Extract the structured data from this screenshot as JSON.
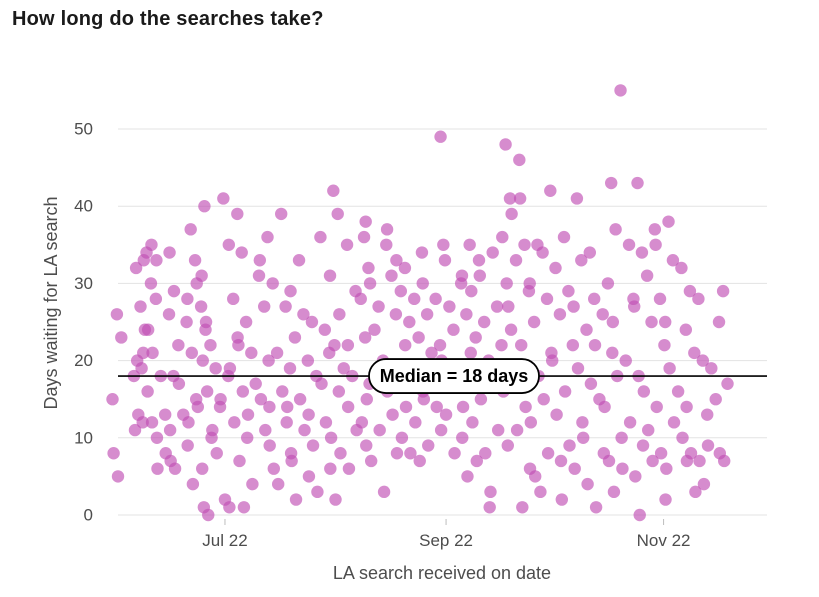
{
  "chart_data": {
    "type": "scatter",
    "title": "How long do the searches take?",
    "xlabel": "LA search received on date",
    "ylabel": "Days waiting for LA search",
    "x_type": "date",
    "xlim": [
      "2022-06-01",
      "2022-11-30"
    ],
    "ylim": [
      0,
      55
    ],
    "x_ticks": [
      {
        "date": "2022-07-01",
        "label": "Jul 22"
      },
      {
        "date": "2022-09-01",
        "label": "Sep 22"
      },
      {
        "date": "2022-11-01",
        "label": "Nov 22"
      }
    ],
    "y_ticks": [
      0,
      10,
      20,
      30,
      40,
      50
    ],
    "grid": "horizontal",
    "point_color": "#c04fb3",
    "median": {
      "value": 18,
      "label": "Median = 18 days"
    },
    "points": [
      [
        "2022-06-01",
        15
      ],
      [
        "2022-06-01",
        26
      ],
      [
        "2022-06-01",
        23
      ],
      [
        "2022-06-01",
        8
      ],
      [
        "2022-06-01",
        5
      ],
      [
        "2022-06-07",
        33
      ],
      [
        "2022-06-07",
        32
      ],
      [
        "2022-06-07",
        27
      ],
      [
        "2022-06-07",
        24
      ],
      [
        "2022-06-07",
        20
      ],
      [
        "2022-06-07",
        19
      ],
      [
        "2022-06-07",
        18
      ],
      [
        "2022-06-07",
        13
      ],
      [
        "2022-06-07",
        12
      ],
      [
        "2022-06-07",
        11
      ],
      [
        "2022-06-09",
        34
      ],
      [
        "2022-06-09",
        30
      ],
      [
        "2022-06-09",
        21
      ],
      [
        "2022-06-09",
        16
      ],
      [
        "2022-06-09",
        12
      ],
      [
        "2022-06-11",
        35
      ],
      [
        "2022-06-11",
        28
      ],
      [
        "2022-06-11",
        24
      ],
      [
        "2022-06-11",
        21
      ],
      [
        "2022-06-11",
        10
      ],
      [
        "2022-06-13",
        33
      ],
      [
        "2022-06-13",
        18
      ],
      [
        "2022-06-13",
        13
      ],
      [
        "2022-06-13",
        6
      ],
      [
        "2022-06-15",
        26
      ],
      [
        "2022-06-15",
        18
      ],
      [
        "2022-06-15",
        8
      ],
      [
        "2022-06-15",
        11
      ],
      [
        "2022-06-17",
        34
      ],
      [
        "2022-06-17",
        29
      ],
      [
        "2022-06-17",
        22
      ],
      [
        "2022-06-17",
        7
      ],
      [
        "2022-06-17",
        6
      ],
      [
        "2022-06-19",
        25
      ],
      [
        "2022-06-19",
        17
      ],
      [
        "2022-06-19",
        13
      ],
      [
        "2022-06-19",
        9
      ],
      [
        "2022-06-22",
        37
      ],
      [
        "2022-06-22",
        33
      ],
      [
        "2022-06-22",
        28
      ],
      [
        "2022-06-22",
        21
      ],
      [
        "2022-06-22",
        15
      ],
      [
        "2022-06-22",
        12
      ],
      [
        "2022-06-22",
        4
      ],
      [
        "2022-06-24",
        40
      ],
      [
        "2022-06-24",
        30
      ],
      [
        "2022-06-24",
        27
      ],
      [
        "2022-06-24",
        24
      ],
      [
        "2022-06-24",
        14
      ],
      [
        "2022-06-24",
        6
      ],
      [
        "2022-06-26",
        31
      ],
      [
        "2022-06-26",
        25
      ],
      [
        "2022-06-26",
        22
      ],
      [
        "2022-06-26",
        20
      ],
      [
        "2022-06-26",
        16
      ],
      [
        "2022-06-26",
        10
      ],
      [
        "2022-06-26",
        1
      ],
      [
        "2022-06-26",
        0
      ],
      [
        "2022-06-29",
        41
      ],
      [
        "2022-06-29",
        19
      ],
      [
        "2022-06-29",
        14
      ],
      [
        "2022-06-29",
        11
      ],
      [
        "2022-06-29",
        8
      ],
      [
        "2022-07-01",
        18
      ],
      [
        "2022-07-01",
        15
      ],
      [
        "2022-07-01",
        2
      ],
      [
        "2022-07-01",
        1
      ],
      [
        "2022-07-03",
        35
      ],
      [
        "2022-07-03",
        28
      ],
      [
        "2022-07-03",
        23
      ],
      [
        "2022-07-03",
        19
      ],
      [
        "2022-07-03",
        12
      ],
      [
        "2022-07-06",
        39
      ],
      [
        "2022-07-06",
        34
      ],
      [
        "2022-07-06",
        25
      ],
      [
        "2022-07-06",
        22
      ],
      [
        "2022-07-06",
        16
      ],
      [
        "2022-07-06",
        10
      ],
      [
        "2022-07-06",
        7
      ],
      [
        "2022-07-06",
        1
      ],
      [
        "2022-07-09",
        31
      ],
      [
        "2022-07-09",
        21
      ],
      [
        "2022-07-09",
        17
      ],
      [
        "2022-07-09",
        13
      ],
      [
        "2022-07-09",
        4
      ],
      [
        "2022-07-12",
        36
      ],
      [
        "2022-07-12",
        33
      ],
      [
        "2022-07-12",
        27
      ],
      [
        "2022-07-12",
        20
      ],
      [
        "2022-07-12",
        15
      ],
      [
        "2022-07-12",
        11
      ],
      [
        "2022-07-12",
        9
      ],
      [
        "2022-07-15",
        30
      ],
      [
        "2022-07-15",
        21
      ],
      [
        "2022-07-15",
        14
      ],
      [
        "2022-07-15",
        6
      ],
      [
        "2022-07-15",
        4
      ],
      [
        "2022-07-18",
        39
      ],
      [
        "2022-07-18",
        27
      ],
      [
        "2022-07-18",
        19
      ],
      [
        "2022-07-18",
        16
      ],
      [
        "2022-07-18",
        12
      ],
      [
        "2022-07-18",
        8
      ],
      [
        "2022-07-20",
        29
      ],
      [
        "2022-07-20",
        23
      ],
      [
        "2022-07-20",
        14
      ],
      [
        "2022-07-20",
        7
      ],
      [
        "2022-07-20",
        2
      ],
      [
        "2022-07-23",
        33
      ],
      [
        "2022-07-23",
        26
      ],
      [
        "2022-07-23",
        20
      ],
      [
        "2022-07-23",
        15
      ],
      [
        "2022-07-23",
        11
      ],
      [
        "2022-07-23",
        5
      ],
      [
        "2022-07-26",
        25
      ],
      [
        "2022-07-26",
        18
      ],
      [
        "2022-07-26",
        13
      ],
      [
        "2022-07-26",
        9
      ],
      [
        "2022-07-26",
        3
      ],
      [
        "2022-07-29",
        36
      ],
      [
        "2022-07-29",
        24
      ],
      [
        "2022-07-29",
        21
      ],
      [
        "2022-07-29",
        17
      ],
      [
        "2022-07-29",
        12
      ],
      [
        "2022-07-29",
        6
      ],
      [
        "2022-08-01",
        42
      ],
      [
        "2022-08-01",
        39
      ],
      [
        "2022-08-01",
        31
      ],
      [
        "2022-08-01",
        22
      ],
      [
        "2022-08-01",
        16
      ],
      [
        "2022-08-01",
        10
      ],
      [
        "2022-08-01",
        2
      ],
      [
        "2022-08-03",
        35
      ],
      [
        "2022-08-03",
        26
      ],
      [
        "2022-08-03",
        19
      ],
      [
        "2022-08-03",
        14
      ],
      [
        "2022-08-03",
        8
      ],
      [
        "2022-08-06",
        29
      ],
      [
        "2022-08-06",
        22
      ],
      [
        "2022-08-06",
        18
      ],
      [
        "2022-08-06",
        11
      ],
      [
        "2022-08-06",
        6
      ],
      [
        "2022-08-09",
        36
      ],
      [
        "2022-08-09",
        32
      ],
      [
        "2022-08-09",
        28
      ],
      [
        "2022-08-09",
        23
      ],
      [
        "2022-08-09",
        17
      ],
      [
        "2022-08-09",
        12
      ],
      [
        "2022-08-09",
        9
      ],
      [
        "2022-08-11",
        38
      ],
      [
        "2022-08-11",
        30
      ],
      [
        "2022-08-11",
        24
      ],
      [
        "2022-08-11",
        15
      ],
      [
        "2022-08-11",
        7
      ],
      [
        "2022-08-14",
        35
      ],
      [
        "2022-08-14",
        27
      ],
      [
        "2022-08-14",
        20
      ],
      [
        "2022-08-14",
        16
      ],
      [
        "2022-08-14",
        11
      ],
      [
        "2022-08-14",
        3
      ],
      [
        "2022-08-17",
        37
      ],
      [
        "2022-08-17",
        31
      ],
      [
        "2022-08-17",
        26
      ],
      [
        "2022-08-17",
        19
      ],
      [
        "2022-08-17",
        13
      ],
      [
        "2022-08-17",
        8
      ],
      [
        "2022-08-19",
        33
      ],
      [
        "2022-08-19",
        29
      ],
      [
        "2022-08-19",
        22
      ],
      [
        "2022-08-19",
        17
      ],
      [
        "2022-08-19",
        10
      ],
      [
        "2022-08-22",
        32
      ],
      [
        "2022-08-22",
        25
      ],
      [
        "2022-08-22",
        18
      ],
      [
        "2022-08-22",
        14
      ],
      [
        "2022-08-22",
        8
      ],
      [
        "2022-08-24",
        34
      ],
      [
        "2022-08-24",
        28
      ],
      [
        "2022-08-24",
        23
      ],
      [
        "2022-08-24",
        16
      ],
      [
        "2022-08-24",
        12
      ],
      [
        "2022-08-24",
        7
      ],
      [
        "2022-08-27",
        30
      ],
      [
        "2022-08-27",
        26
      ],
      [
        "2022-08-27",
        21
      ],
      [
        "2022-08-27",
        15
      ],
      [
        "2022-08-27",
        9
      ],
      [
        "2022-08-30",
        35
      ],
      [
        "2022-08-30",
        28
      ],
      [
        "2022-08-30",
        22
      ],
      [
        "2022-08-30",
        19
      ],
      [
        "2022-08-30",
        14
      ],
      [
        "2022-08-30",
        11
      ],
      [
        "2022-09-01",
        49
      ],
      [
        "2022-09-01",
        33
      ],
      [
        "2022-09-01",
        27
      ],
      [
        "2022-09-01",
        20
      ],
      [
        "2022-09-01",
        13
      ],
      [
        "2022-09-04",
        30
      ],
      [
        "2022-09-04",
        24
      ],
      [
        "2022-09-04",
        17
      ],
      [
        "2022-09-04",
        10
      ],
      [
        "2022-09-04",
        8
      ],
      [
        "2022-09-07",
        35
      ],
      [
        "2022-09-07",
        31
      ],
      [
        "2022-09-07",
        26
      ],
      [
        "2022-09-07",
        21
      ],
      [
        "2022-09-07",
        14
      ],
      [
        "2022-09-07",
        5
      ],
      [
        "2022-09-09",
        33
      ],
      [
        "2022-09-09",
        29
      ],
      [
        "2022-09-09",
        23
      ],
      [
        "2022-09-09",
        18
      ],
      [
        "2022-09-09",
        12
      ],
      [
        "2022-09-09",
        7
      ],
      [
        "2022-09-12",
        31
      ],
      [
        "2022-09-12",
        25
      ],
      [
        "2022-09-12",
        20
      ],
      [
        "2022-09-12",
        15
      ],
      [
        "2022-09-12",
        8
      ],
      [
        "2022-09-12",
        1
      ],
      [
        "2022-09-15",
        34
      ],
      [
        "2022-09-15",
        27
      ],
      [
        "2022-09-15",
        22
      ],
      [
        "2022-09-15",
        17
      ],
      [
        "2022-09-15",
        11
      ],
      [
        "2022-09-15",
        3
      ],
      [
        "2022-09-18",
        48
      ],
      [
        "2022-09-18",
        41
      ],
      [
        "2022-09-18",
        36
      ],
      [
        "2022-09-18",
        30
      ],
      [
        "2022-09-18",
        24
      ],
      [
        "2022-09-18",
        16
      ],
      [
        "2022-09-18",
        9
      ],
      [
        "2022-09-20",
        46
      ],
      [
        "2022-09-20",
        39
      ],
      [
        "2022-09-20",
        33
      ],
      [
        "2022-09-20",
        27
      ],
      [
        "2022-09-20",
        19
      ],
      [
        "2022-09-20",
        11
      ],
      [
        "2022-09-23",
        41
      ],
      [
        "2022-09-23",
        35
      ],
      [
        "2022-09-23",
        29
      ],
      [
        "2022-09-23",
        22
      ],
      [
        "2022-09-23",
        14
      ],
      [
        "2022-09-23",
        6
      ],
      [
        "2022-09-23",
        1
      ],
      [
        "2022-09-26",
        35
      ],
      [
        "2022-09-26",
        30
      ],
      [
        "2022-09-26",
        25
      ],
      [
        "2022-09-26",
        18
      ],
      [
        "2022-09-26",
        12
      ],
      [
        "2022-09-26",
        5
      ],
      [
        "2022-09-29",
        42
      ],
      [
        "2022-09-29",
        34
      ],
      [
        "2022-09-29",
        28
      ],
      [
        "2022-09-29",
        21
      ],
      [
        "2022-09-29",
        15
      ],
      [
        "2022-09-29",
        8
      ],
      [
        "2022-09-29",
        3
      ],
      [
        "2022-10-02",
        32
      ],
      [
        "2022-10-02",
        26
      ],
      [
        "2022-10-02",
        20
      ],
      [
        "2022-10-02",
        13
      ],
      [
        "2022-10-02",
        7
      ],
      [
        "2022-10-05",
        36
      ],
      [
        "2022-10-05",
        29
      ],
      [
        "2022-10-05",
        22
      ],
      [
        "2022-10-05",
        16
      ],
      [
        "2022-10-05",
        9
      ],
      [
        "2022-10-05",
        2
      ],
      [
        "2022-10-08",
        41
      ],
      [
        "2022-10-08",
        33
      ],
      [
        "2022-10-08",
        27
      ],
      [
        "2022-10-08",
        19
      ],
      [
        "2022-10-08",
        12
      ],
      [
        "2022-10-08",
        6
      ],
      [
        "2022-10-11",
        34
      ],
      [
        "2022-10-11",
        28
      ],
      [
        "2022-10-11",
        24
      ],
      [
        "2022-10-11",
        17
      ],
      [
        "2022-10-11",
        10
      ],
      [
        "2022-10-11",
        4
      ],
      [
        "2022-10-14",
        26
      ],
      [
        "2022-10-14",
        22
      ],
      [
        "2022-10-14",
        15
      ],
      [
        "2022-10-14",
        8
      ],
      [
        "2022-10-14",
        1
      ],
      [
        "2022-10-17",
        43
      ],
      [
        "2022-10-17",
        37
      ],
      [
        "2022-10-17",
        30
      ],
      [
        "2022-10-17",
        21
      ],
      [
        "2022-10-17",
        14
      ],
      [
        "2022-10-17",
        7
      ],
      [
        "2022-10-19",
        55
      ],
      [
        "2022-10-19",
        25
      ],
      [
        "2022-10-19",
        18
      ],
      [
        "2022-10-19",
        10
      ],
      [
        "2022-10-19",
        3
      ],
      [
        "2022-10-22",
        35
      ],
      [
        "2022-10-22",
        28
      ],
      [
        "2022-10-22",
        20
      ],
      [
        "2022-10-22",
        12
      ],
      [
        "2022-10-22",
        6
      ],
      [
        "2022-10-25",
        43
      ],
      [
        "2022-10-25",
        34
      ],
      [
        "2022-10-25",
        27
      ],
      [
        "2022-10-25",
        18
      ],
      [
        "2022-10-25",
        9
      ],
      [
        "2022-10-25",
        5
      ],
      [
        "2022-10-25",
        0
      ],
      [
        "2022-10-28",
        37
      ],
      [
        "2022-10-28",
        31
      ],
      [
        "2022-10-28",
        25
      ],
      [
        "2022-10-28",
        16
      ],
      [
        "2022-10-28",
        11
      ],
      [
        "2022-10-28",
        7
      ],
      [
        "2022-10-31",
        35
      ],
      [
        "2022-10-31",
        28
      ],
      [
        "2022-10-31",
        22
      ],
      [
        "2022-10-31",
        14
      ],
      [
        "2022-10-31",
        8
      ],
      [
        "2022-10-31",
        2
      ],
      [
        "2022-11-03",
        38
      ],
      [
        "2022-11-03",
        33
      ],
      [
        "2022-11-03",
        25
      ],
      [
        "2022-11-03",
        19
      ],
      [
        "2022-11-03",
        12
      ],
      [
        "2022-11-03",
        6
      ],
      [
        "2022-11-06",
        32
      ],
      [
        "2022-11-06",
        24
      ],
      [
        "2022-11-06",
        16
      ],
      [
        "2022-11-06",
        10
      ],
      [
        "2022-11-06",
        7
      ],
      [
        "2022-11-09",
        29
      ],
      [
        "2022-11-09",
        21
      ],
      [
        "2022-11-09",
        14
      ],
      [
        "2022-11-09",
        8
      ],
      [
        "2022-11-09",
        3
      ],
      [
        "2022-11-12",
        28
      ],
      [
        "2022-11-12",
        20
      ],
      [
        "2022-11-12",
        13
      ],
      [
        "2022-11-12",
        7
      ],
      [
        "2022-11-12",
        4
      ],
      [
        "2022-11-15",
        25
      ],
      [
        "2022-11-15",
        19
      ],
      [
        "2022-11-15",
        15
      ],
      [
        "2022-11-15",
        9
      ],
      [
        "2022-11-18",
        29
      ],
      [
        "2022-11-18",
        17
      ],
      [
        "2022-11-18",
        8
      ],
      [
        "2022-11-18",
        7
      ]
    ]
  }
}
